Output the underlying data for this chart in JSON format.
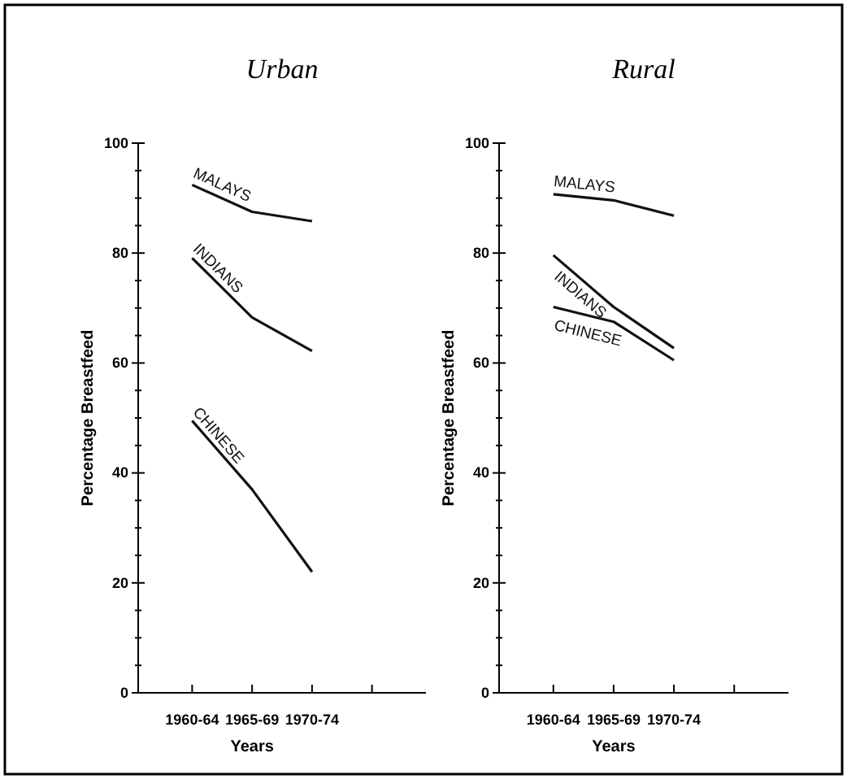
{
  "chart_data": [
    {
      "type": "line",
      "title": "Urban",
      "xlabel": "Years",
      "ylabel": "Percentage Breastfeed",
      "categories": [
        "1960-64",
        "1965-69",
        "1970-74",
        null
      ],
      "ylim": [
        0,
        100
      ],
      "yticks": [
        0,
        {
          "value": 5,
          "label": null
        },
        {
          "value": 10,
          "label": null
        },
        {
          "value": 15,
          "label": null
        },
        20,
        {
          "value": 25,
          "label": null
        },
        {
          "value": 30,
          "label": null
        },
        {
          "value": 35,
          "label": null
        },
        40,
        {
          "value": 45,
          "label": null
        },
        {
          "value": 50,
          "label": null
        },
        {
          "value": 55,
          "label": null
        },
        60,
        {
          "value": 65,
          "label": null
        },
        {
          "value": 70,
          "label": null
        },
        {
          "value": 75,
          "label": null
        },
        80,
        {
          "value": 85,
          "label": null
        },
        {
          "value": 90,
          "label": null
        },
        {
          "value": 95,
          "label": null
        },
        100
      ],
      "grid": false,
      "legend": false,
      "marker": "none",
      "line_style": "solid",
      "series": [
        {
          "name": "MALAYS",
          "color": "#111111",
          "values": [
            92.4,
            87.5,
            85.8,
            null
          ]
        },
        {
          "name": "INDIANS",
          "color": "#111111",
          "values": [
            79.1,
            68.3,
            62.2,
            null
          ]
        },
        {
          "name": "CHINESE",
          "color": "#111111",
          "values": [
            49.5,
            37,
            22,
            null
          ]
        }
      ]
    },
    {
      "type": "line",
      "title": "Rural",
      "xlabel": "Years",
      "ylabel": "Percentage Breastfeed",
      "categories": [
        "1960-64",
        "1965-69",
        "1970-74",
        null
      ],
      "ylim": [
        0,
        100
      ],
      "yticks": [
        0,
        {
          "value": 5,
          "label": null
        },
        {
          "value": 10,
          "label": null
        },
        {
          "value": 15,
          "label": null
        },
        20,
        {
          "value": 25,
          "label": null
        },
        {
          "value": 30,
          "label": null
        },
        {
          "value": 35,
          "label": null
        },
        40,
        {
          "value": 45,
          "label": null
        },
        {
          "value": 50,
          "label": null
        },
        {
          "value": 55,
          "label": null
        },
        60,
        {
          "value": 65,
          "label": null
        },
        {
          "value": 70,
          "label": null
        },
        {
          "value": 75,
          "label": null
        },
        80,
        {
          "value": 85,
          "label": null
        },
        {
          "value": 90,
          "label": null
        },
        {
          "value": 95,
          "label": null
        },
        100
      ],
      "grid": false,
      "legend": false,
      "marker": "none",
      "line_style": "solid",
      "series": [
        {
          "name": "MALAYS",
          "color": "#111111",
          "values": [
            90.7,
            89.6,
            86.8,
            null
          ]
        },
        {
          "name": "INDIANS",
          "color": "#111111",
          "values": [
            79.6,
            70.2,
            62.7,
            null
          ]
        },
        {
          "name": "CHINESE",
          "color": "#111111",
          "values": [
            70.2,
            67.5,
            60.5,
            null
          ]
        }
      ]
    }
  ]
}
